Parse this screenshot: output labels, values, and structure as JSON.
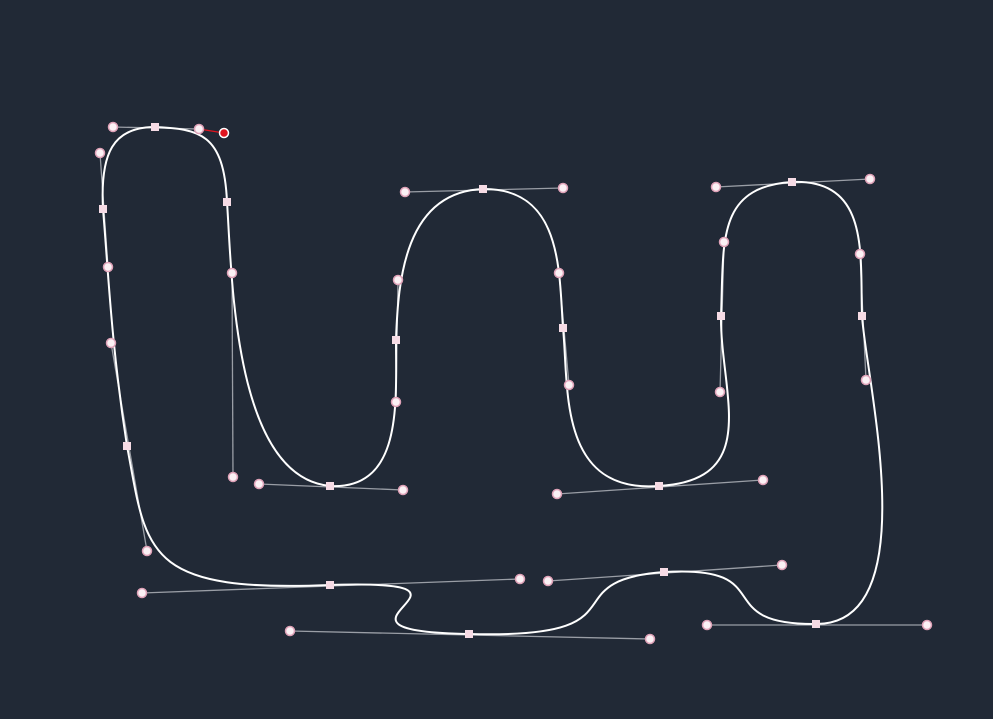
{
  "editor": {
    "selected_handle": "handle-outer-top-right",
    "colors": {
      "background": "#212936",
      "curve": "#ffffff",
      "handle_line": "#9a9ea6",
      "active_handle": "#e0141e",
      "anchor": "#f6dbe5"
    }
  }
}
